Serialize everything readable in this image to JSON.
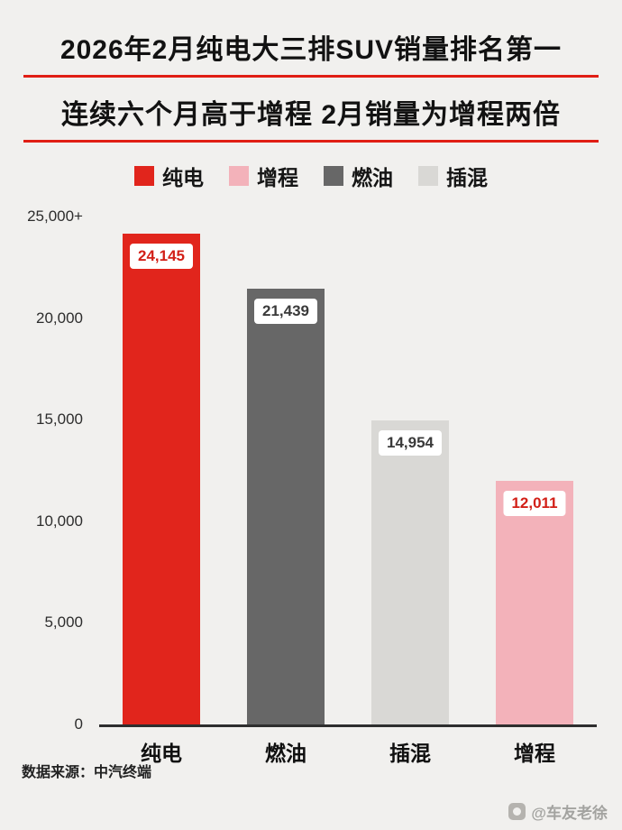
{
  "header": {
    "title_line1": "2026年2月纯电大三排SUV销量排名第一",
    "title_line2": "连续六个月高于增程 2月销量为增程两倍",
    "underline_color": "#e01e14"
  },
  "legend": {
    "items": [
      {
        "label": "纯电",
        "color": "#e1251c"
      },
      {
        "label": "增程",
        "color": "#f3b2ba"
      },
      {
        "label": "燃油",
        "color": "#676767"
      },
      {
        "label": "插混",
        "color": "#d9d8d5"
      }
    ]
  },
  "chart_data": {
    "type": "bar",
    "title": "2026年2月纯电大三排SUV销量排名第一",
    "subtitle": "连续六个月高于增程 2月销量为增程两倍",
    "categories": [
      "纯电",
      "燃油",
      "插混",
      "增程"
    ],
    "values": [
      24145,
      21439,
      14954,
      12011
    ],
    "value_labels": [
      "24,145",
      "21,439",
      "14,954",
      "12,011"
    ],
    "bar_colors": [
      "#e1251c",
      "#676767",
      "#d9d8d5",
      "#f3b2ba"
    ],
    "value_label_colors": [
      "#d21f17",
      "#3a3a3a",
      "#3a3a3a",
      "#d21f17"
    ],
    "xlabel": "",
    "ylabel": "",
    "ylim": [
      0,
      25000
    ],
    "y_ticks": [
      {
        "label": "25,000+",
        "value": 25000
      },
      {
        "label": "20,000",
        "value": 20000
      },
      {
        "label": "15,000",
        "value": 15000
      },
      {
        "label": "10,000",
        "value": 10000
      },
      {
        "label": "5,000",
        "value": 5000
      },
      {
        "label": "0",
        "value": 0
      }
    ],
    "legend": [
      "纯电",
      "增程",
      "燃油",
      "插混"
    ],
    "legend_position": "top",
    "grid": false
  },
  "footer": {
    "source": "数据来源：中汽终端",
    "watermark": "@车友老徐"
  }
}
